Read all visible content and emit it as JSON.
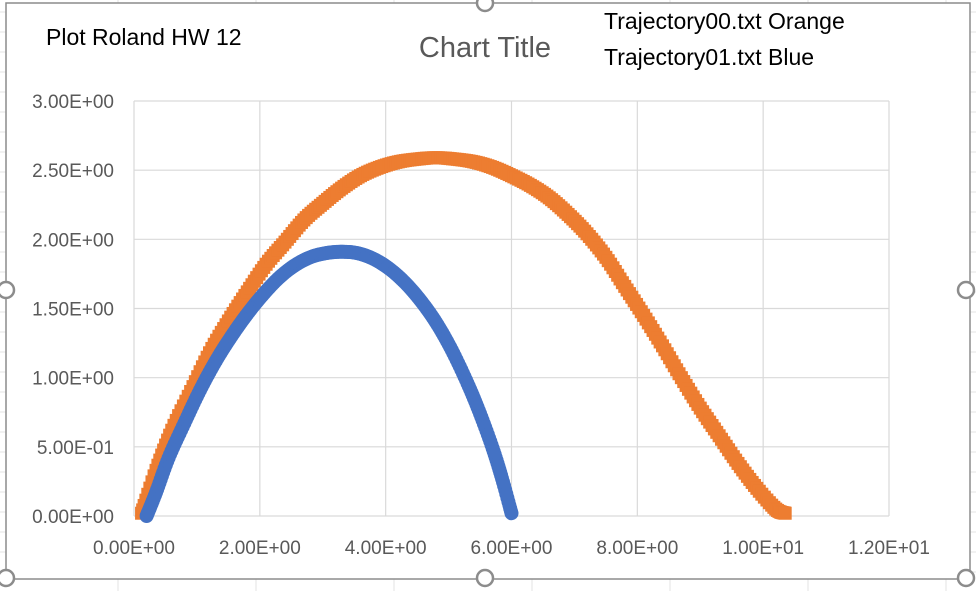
{
  "chart_data": {
    "type": "scatter",
    "title": "Chart Title",
    "annotations": [
      "Plot Roland HW 12",
      "Trajectory00.txt Orange",
      "Trajectory01.txt Blue"
    ],
    "xlim": [
      0,
      12
    ],
    "ylim": [
      0,
      3
    ],
    "x_ticks": [
      "0.00E+00",
      "2.00E+00",
      "4.00E+00",
      "6.00E+00",
      "8.00E+00",
      "1.00E+01",
      "1.20E+01"
    ],
    "y_ticks": [
      "0.00E+00",
      "5.00E-01",
      "1.00E+00",
      "1.50E+00",
      "2.00E+00",
      "2.50E+00",
      "3.00E+00"
    ],
    "grid": true,
    "legend": "none",
    "series": [
      {
        "color": "#ED7D31",
        "marker": "square",
        "x": [
          0.12,
          0.35,
          0.6,
          0.9,
          1.2,
          1.5,
          1.8,
          2.1,
          2.4,
          2.7,
          3.0,
          3.3,
          3.6,
          3.9,
          4.2,
          4.5,
          4.8,
          5.1,
          5.4,
          5.7,
          6.0,
          6.3,
          6.6,
          6.9,
          7.2,
          7.5,
          7.8,
          8.1,
          8.4,
          8.7,
          9.0,
          9.3,
          9.6,
          9.9,
          10.2,
          10.35
        ],
        "y": [
          0.02,
          0.33,
          0.62,
          0.9,
          1.18,
          1.41,
          1.62,
          1.82,
          1.98,
          2.14,
          2.26,
          2.37,
          2.46,
          2.52,
          2.56,
          2.58,
          2.59,
          2.58,
          2.56,
          2.52,
          2.46,
          2.39,
          2.3,
          2.18,
          2.04,
          1.87,
          1.66,
          1.45,
          1.23,
          1.0,
          0.78,
          0.58,
          0.38,
          0.2,
          0.05,
          0.02
        ]
      },
      {
        "color": "#4472C4",
        "marker": "circle",
        "x": [
          0.2,
          0.35,
          0.55,
          0.8,
          1.05,
          1.3,
          1.55,
          1.8,
          2.05,
          2.3,
          2.55,
          2.8,
          3.05,
          3.3,
          3.55,
          3.8,
          4.05,
          4.3,
          4.55,
          4.8,
          5.05,
          5.3,
          5.5,
          5.7,
          5.85,
          6.0
        ],
        "y": [
          0.0,
          0.17,
          0.42,
          0.67,
          0.91,
          1.12,
          1.3,
          1.46,
          1.6,
          1.72,
          1.81,
          1.87,
          1.9,
          1.91,
          1.9,
          1.86,
          1.79,
          1.69,
          1.56,
          1.4,
          1.2,
          0.96,
          0.74,
          0.49,
          0.27,
          0.02
        ]
      }
    ]
  }
}
